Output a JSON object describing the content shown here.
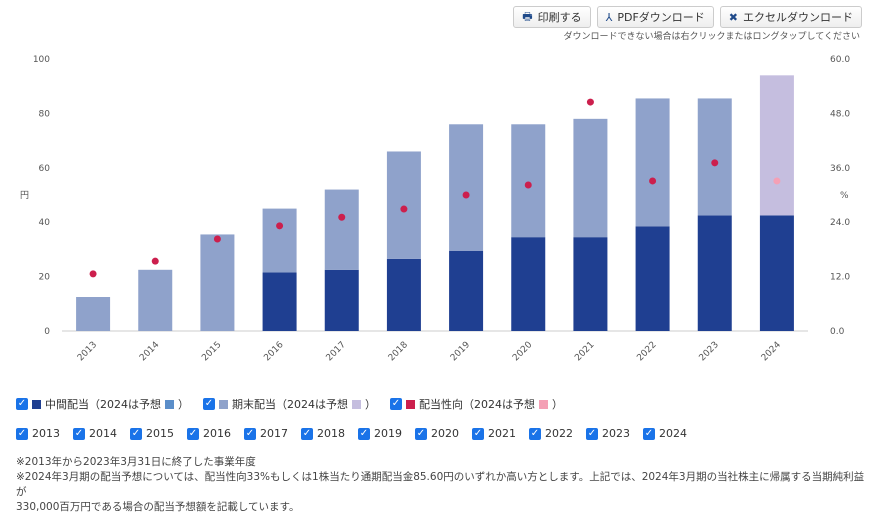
{
  "toolbar": {
    "print": "印刷する",
    "pdf": "PDFダウンロード",
    "excel": "エクセルダウンロード",
    "note": "ダウンロードできない場合は右クリックまたはロングタップしてください"
  },
  "legend": {
    "interim": {
      "label": "中間配当（2024は予想",
      "close": "）",
      "color": "#1f3f91",
      "forecast_color": "#5b8ec9"
    },
    "final": {
      "label": "期末配当（2024は予想",
      "close": "）",
      "color": "#8fa2cb",
      "forecast_color": "#c5bedf"
    },
    "payout": {
      "label": "配当性向（2024は予想",
      "close": "）",
      "color": "#cc1f4d",
      "forecast_color": "#f4a0b5"
    }
  },
  "year_filters": [
    "2013",
    "2014",
    "2015",
    "2016",
    "2017",
    "2018",
    "2019",
    "2020",
    "2021",
    "2022",
    "2023",
    "2024"
  ],
  "notes": [
    "※2013年から2023年3月31日に終了した事業年度",
    "※2024年3月期の配当予想については、配当性向33%もしくは1株当たり通期配当金85.60円のいずれか高い方とします。上記では、2024年3月期の当社株主に帰属する当期純利益が",
    "330,000百万円である場合の配当予想額を記載しています。"
  ],
  "chart_data": {
    "type": "bar",
    "categories": [
      "2013",
      "2014",
      "2015",
      "2016",
      "2017",
      "2018",
      "2019",
      "2020",
      "2021",
      "2022",
      "2023",
      "2024"
    ],
    "ylabel": "円",
    "y2label": "%",
    "ylim": [
      0,
      100
    ],
    "yticks": [
      "0",
      "20",
      "40",
      "60",
      "80",
      "100"
    ],
    "y2lim": [
      0,
      60
    ],
    "y2ticks": [
      "0.0",
      "12.0",
      "24.0",
      "36.0",
      "48.0",
      "60.0"
    ],
    "series": [
      {
        "name": "中間配当",
        "type": "bar",
        "stack": true,
        "values": [
          0,
          0,
          0,
          21.5,
          22.5,
          26.5,
          29.5,
          34.5,
          34.5,
          38.5,
          42.5,
          42.5
        ]
      },
      {
        "name": "期末配当",
        "type": "bar",
        "stack": true,
        "values": [
          12.5,
          22.5,
          35.5,
          23.5,
          29.5,
          39.5,
          46.5,
          41.5,
          43.5,
          47,
          43,
          51.5
        ]
      },
      {
        "name": "配当性向",
        "type": "line",
        "axis": "right",
        "values": [
          12.6,
          15.4,
          20.3,
          23.2,
          25.1,
          26.9,
          30.0,
          32.2,
          50.5,
          33.1,
          37.1,
          33.1
        ]
      }
    ],
    "forecast_category": "2024",
    "grid": false
  }
}
